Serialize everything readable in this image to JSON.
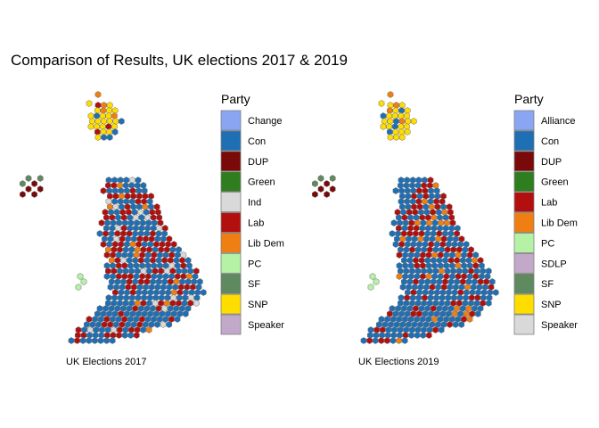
{
  "figure": {
    "title": "Comparison of Results, UK elections 2017 & 2019"
  },
  "chart_data": [
    {
      "type": "hexmap",
      "panel_title": "UK Elections 2017",
      "legend_title": "Party",
      "legend": [
        {
          "label": "Change",
          "color": "#8aa5f2"
        },
        {
          "label": "Con",
          "color": "#1f6fb5"
        },
        {
          "label": "DUP",
          "color": "#7a0a0a"
        },
        {
          "label": "Green",
          "color": "#2e7d1e"
        },
        {
          "label": "Ind",
          "color": "#d9d9d9"
        },
        {
          "label": "Lab",
          "color": "#b40f0f"
        },
        {
          "label": "Lib Dem",
          "color": "#f07f13"
        },
        {
          "label": "PC",
          "color": "#b5f2a5"
        },
        {
          "label": "SF",
          "color": "#5f8a5f"
        },
        {
          "label": "SNP",
          "color": "#ffdd00"
        },
        {
          "label": "Speaker",
          "color": "#c2a9c9"
        }
      ]
    },
    {
      "type": "hexmap",
      "panel_title": "UK Elections 2019",
      "legend_title": "Party",
      "legend": [
        {
          "label": "Alliance",
          "color": "#8aa5f2"
        },
        {
          "label": "Con",
          "color": "#1f6fb5"
        },
        {
          "label": "DUP",
          "color": "#7a0a0a"
        },
        {
          "label": "Green",
          "color": "#2e7d1e"
        },
        {
          "label": "Lab",
          "color": "#b40f0f"
        },
        {
          "label": "Lib Dem",
          "color": "#f07f13"
        },
        {
          "label": "PC",
          "color": "#b5f2a5"
        },
        {
          "label": "SDLP",
          "color": "#c2a9c9"
        },
        {
          "label": "SF",
          "color": "#5f8a5f"
        },
        {
          "label": "SNP",
          "color": "#ffdd00"
        },
        {
          "label": "Speaker",
          "color": "#d9d9d9"
        }
      ]
    }
  ]
}
